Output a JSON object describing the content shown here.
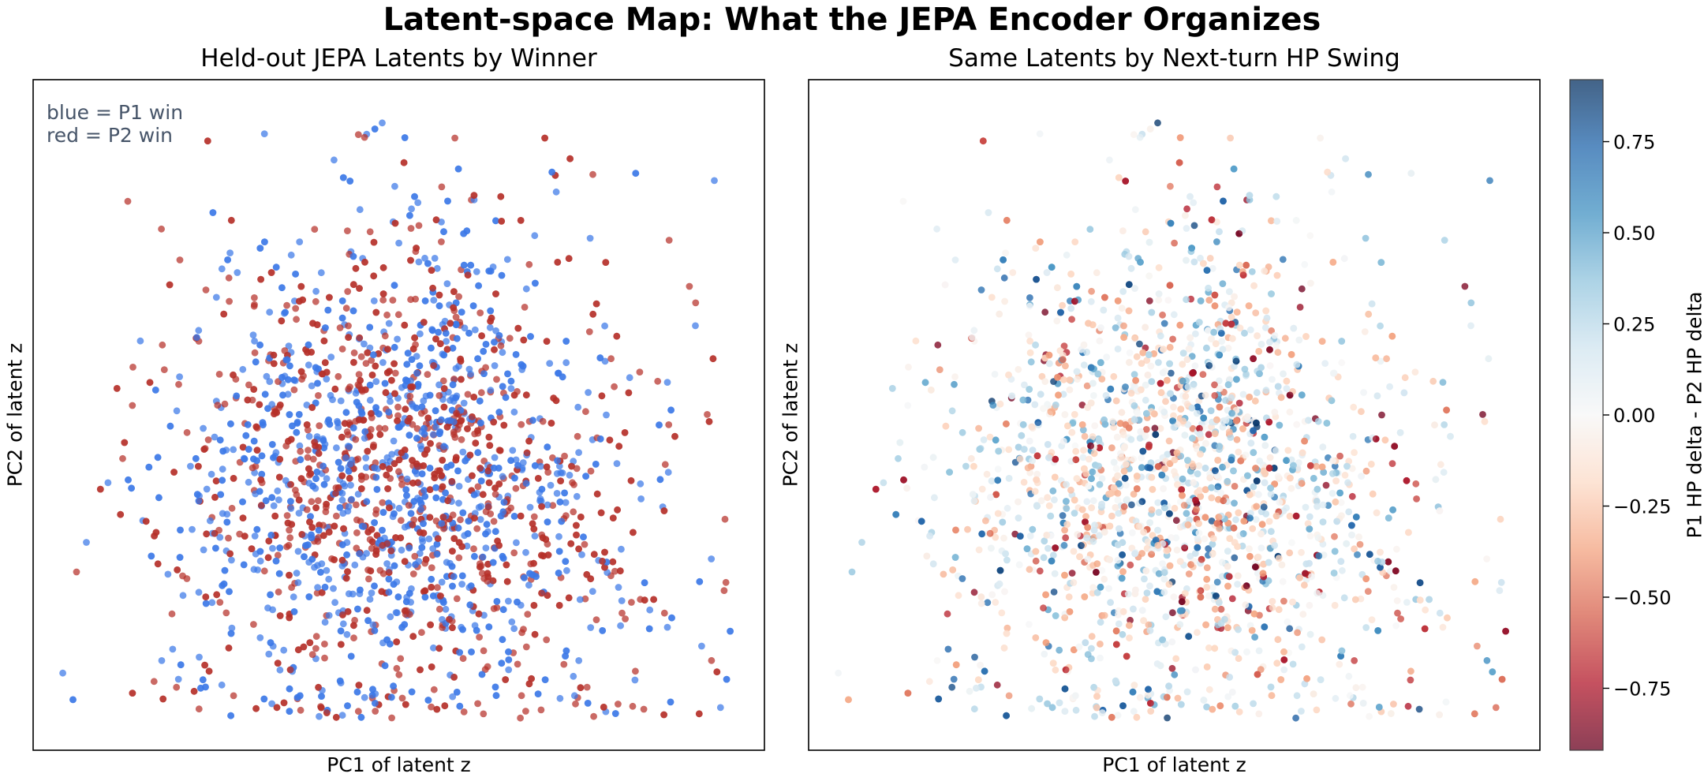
{
  "figure": {
    "title": "Latent-space Map: What the JEPA Encoder Organizes"
  },
  "chart_data": [
    {
      "type": "scatter",
      "title": "Held-out JEPA Latents by Winner",
      "xlabel": "PC1 of latent z",
      "ylabel": "PC2 of latent z",
      "ticks": "hidden",
      "xlim": [
        -3.2,
        3.2
      ],
      "ylim": [
        -3.0,
        3.3
      ],
      "annotation": [
        "blue = P1 win",
        "red = P2 win"
      ],
      "colors": {
        "p1_win": "#3b78e7",
        "p2_win": "#b5302a"
      },
      "point_count_estimate": 2600,
      "series": [
        {
          "name": "blue = P1 win",
          "cluster_center": [
            0.1,
            -0.2
          ],
          "x_spread": 1.1,
          "y_spread": 1.3
        },
        {
          "name": "red = P2 win",
          "cluster_center": [
            0.0,
            -0.5
          ],
          "x_spread": 1.0,
          "y_spread": 1.3
        }
      ]
    },
    {
      "type": "scatter",
      "title": "Same Latents by Next-turn HP Swing",
      "xlabel": "PC1 of latent z",
      "ylabel": "PC2 of latent z",
      "ticks": "hidden",
      "xlim": [
        -3.2,
        3.2
      ],
      "ylim": [
        -3.0,
        3.3
      ],
      "colormap": "RdBu",
      "colorbar": {
        "label": "P1 HP delta - P2 HP delta",
        "range": [
          -0.92,
          0.92
        ],
        "ticks": [
          0.75,
          0.5,
          0.25,
          0.0,
          -0.25,
          -0.5,
          -0.75
        ],
        "tick_labels": [
          "0.75",
          "0.50",
          "0.25",
          "0.00",
          "−0.25",
          "−0.50",
          "−0.75"
        ]
      },
      "value_distribution": "mostly near 0 with sparse extremes of both signs"
    }
  ]
}
